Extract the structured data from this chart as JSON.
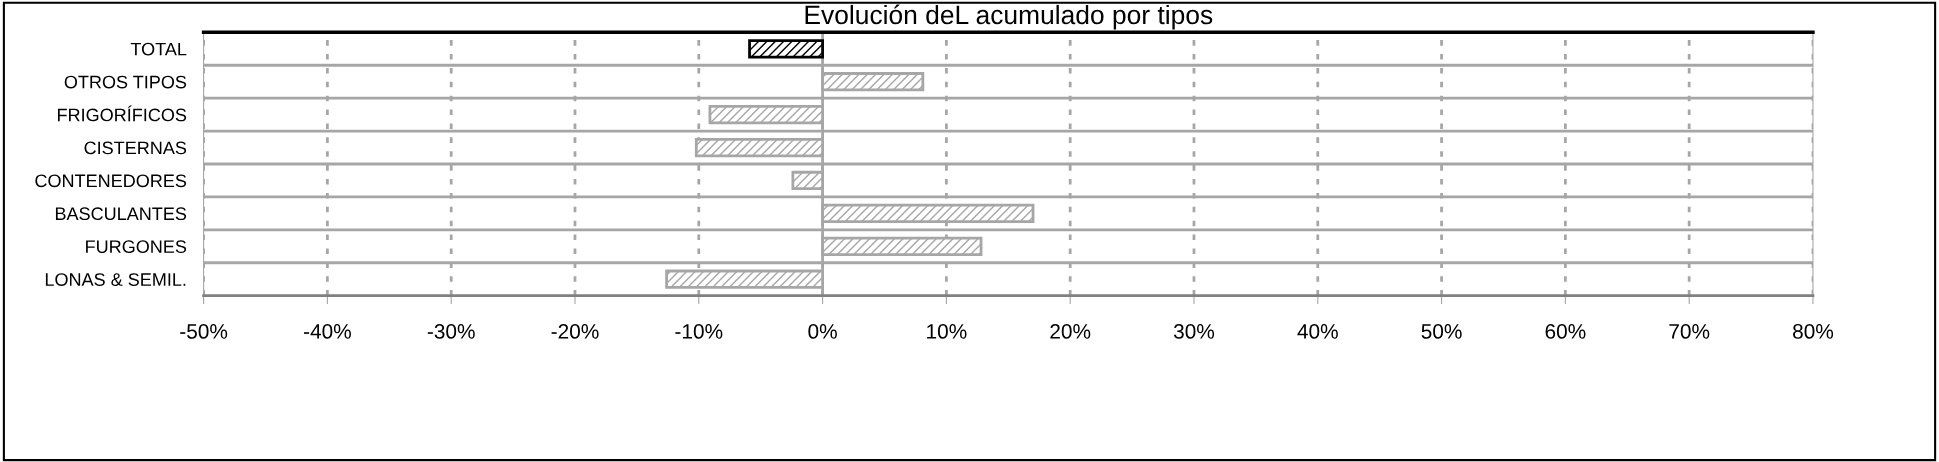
{
  "chart_data": {
    "type": "bar",
    "orientation": "horizontal",
    "title": "Evolución deL acumulado por tipos",
    "categories": [
      "TOTAL",
      "OTROS TIPOS",
      "FRIGORÍFICOS",
      "CISTERNAS",
      "CONTENEDORES",
      "BASCULANTES",
      "FURGONES",
      "LONAS & SEMIL."
    ],
    "values": [
      -5.9,
      8.1,
      -9.1,
      -10.2,
      -2.4,
      17.0,
      12.8,
      -12.6
    ],
    "colors": [
      "#000000",
      "#a6a6a6",
      "#a6a6a6",
      "#a6a6a6",
      "#a6a6a6",
      "#a6a6a6",
      "#a6a6a6",
      "#a6a6a6"
    ],
    "xlim": [
      -50,
      80
    ],
    "xticks": [
      {
        "value": -50,
        "label": "-50%"
      },
      {
        "value": -40,
        "label": "-40%"
      },
      {
        "value": -30,
        "label": "-30%"
      },
      {
        "value": -20,
        "label": "-20%"
      },
      {
        "value": -10,
        "label": "-10%"
      },
      {
        "value": 0,
        "label": "0%"
      },
      {
        "value": 10,
        "label": "10%"
      },
      {
        "value": 20,
        "label": "20%"
      },
      {
        "value": 30,
        "label": "30%"
      },
      {
        "value": 40,
        "label": "40%"
      },
      {
        "value": 50,
        "label": "50%"
      },
      {
        "value": 60,
        "label": "60%"
      },
      {
        "value": 70,
        "label": "70%"
      },
      {
        "value": 80,
        "label": "80%"
      }
    ],
    "grid": true
  }
}
